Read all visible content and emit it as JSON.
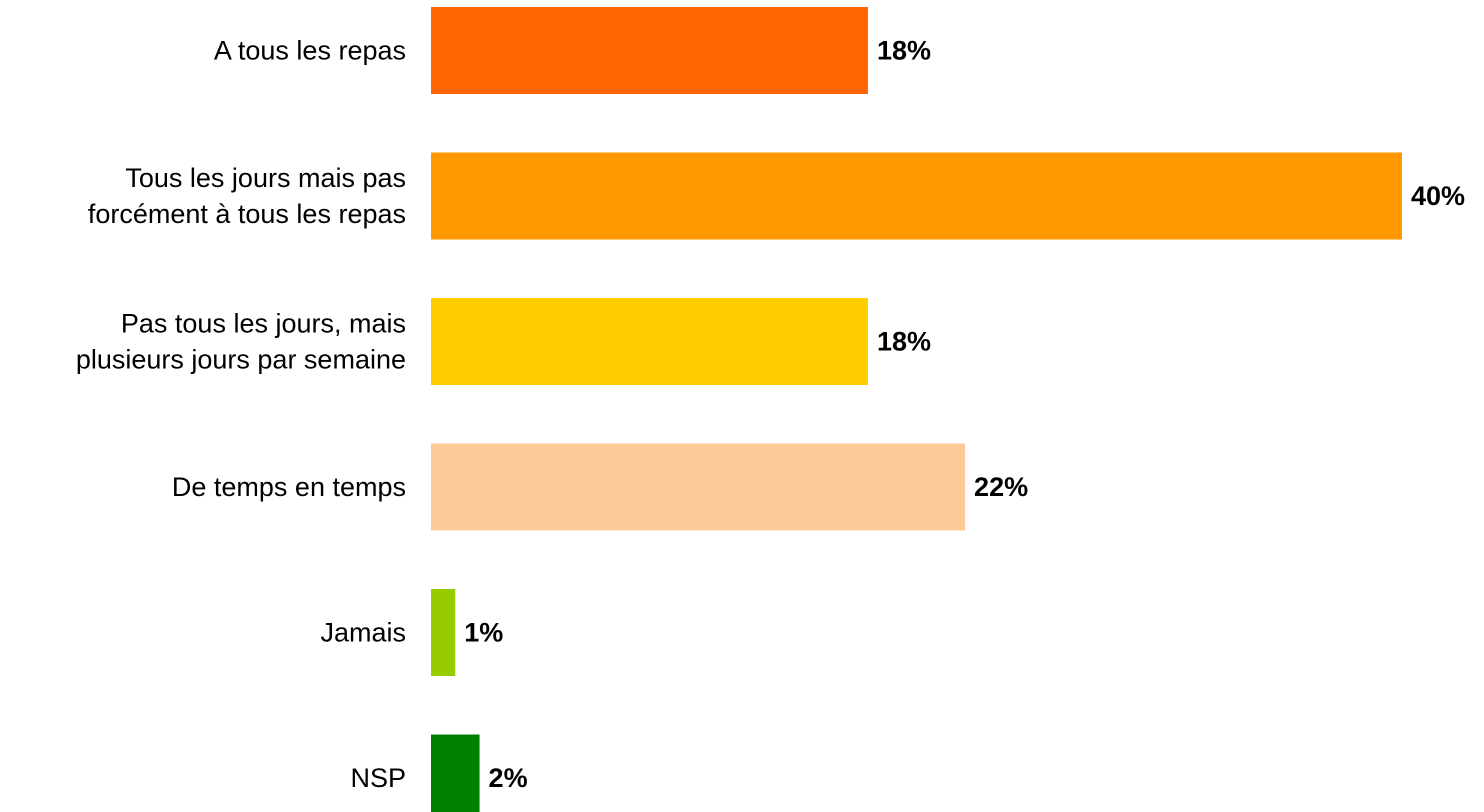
{
  "chart_data": {
    "type": "bar",
    "orientation": "horizontal",
    "categories": [
      [
        "A tous les repas"
      ],
      [
        "Tous les jours mais pas",
        "forcément à tous les repas"
      ],
      [
        "Pas tous les jours, mais",
        "plusieurs jours par semaine"
      ],
      [
        "De temps en temps"
      ],
      [
        "Jamais"
      ],
      [
        "NSP"
      ]
    ],
    "values": [
      18,
      40,
      18,
      22,
      1,
      2
    ],
    "value_labels": [
      "18%",
      "40%",
      "18%",
      "22%",
      "1%",
      "2%"
    ],
    "colors": [
      "#ff6600",
      "#ff9900",
      "#ffcc00",
      "#fccb99",
      "#99cc00",
      "#008000"
    ],
    "title": "",
    "xlabel": "",
    "ylabel": "",
    "xlim": [
      0,
      40
    ],
    "grid": false,
    "legend": "none"
  }
}
